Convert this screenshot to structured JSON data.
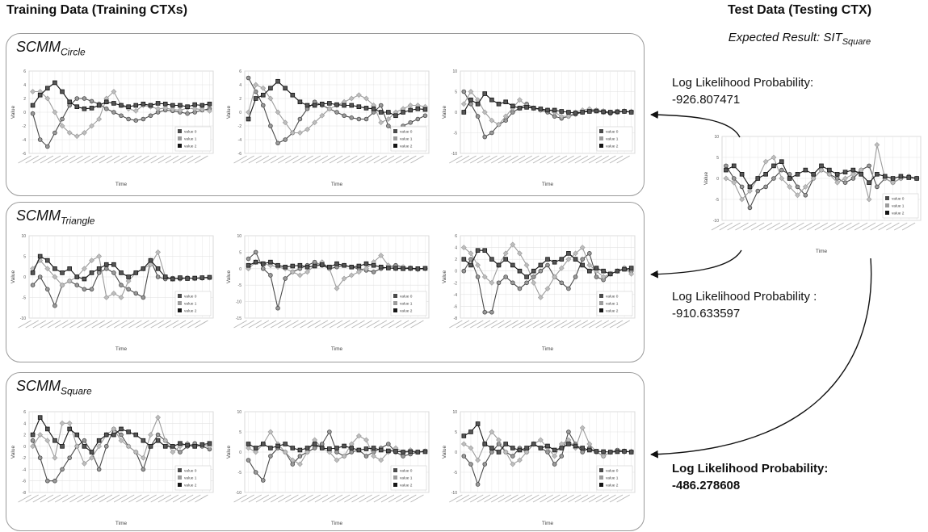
{
  "header": {
    "training_title": "Training Data (Training CTXs)",
    "test_title": "Test Data (Testing CTX)",
    "expected_prefix": "Expected Result: SIT",
    "expected_sub": "Square"
  },
  "chart_labels": {
    "ylabel": "Value",
    "xlabel": "Time",
    "legend": [
      "value 0",
      "value 1",
      "value 2"
    ]
  },
  "groups": [
    {
      "name": "SCMM",
      "sub": "Circle",
      "log_label": "Log Likelihood Probability:",
      "log_value": "-926.807471",
      "emphasized": false
    },
    {
      "name": "SCMM",
      "sub": "Triangle",
      "log_label": "Log Likelihood Probability :",
      "log_value": "-910.633597",
      "emphasized": false
    },
    {
      "name": "SCMM",
      "sub": "Square",
      "log_label": "Log Likelihood Probability:",
      "log_value": "-486.278608",
      "emphasized": true
    }
  ],
  "chart_data": [
    {
      "id": "circle-1",
      "type": "line",
      "ylim": [
        -6,
        6
      ],
      "yticks": [
        -6,
        -4,
        -2,
        0,
        2,
        4,
        6
      ],
      "series": [
        {
          "values": [
            -0.2,
            -4,
            -5,
            -3,
            -1,
            1,
            2,
            2,
            1.6,
            1.2,
            0.5,
            0,
            -0.5,
            -1,
            -1.2,
            -1,
            -0.5,
            0,
            0.3,
            0.2,
            0,
            -0.2,
            0,
            0.3,
            0.5
          ]
        },
        {
          "values": [
            3,
            3,
            2,
            0,
            -2,
            -3,
            -3.5,
            -3,
            -2,
            -1,
            2,
            3,
            1,
            0.5,
            0.2,
            1,
            0.8,
            0.5,
            0.6,
            0.4,
            0.3,
            0.6,
            0.5,
            0.4,
            0.2
          ]
        },
        {
          "values": [
            1,
            2.5,
            3.5,
            4.3,
            3,
            1.5,
            0.8,
            0.5,
            0.6,
            1,
            1.5,
            1.3,
            1,
            0.8,
            1,
            1.2,
            1,
            1.3,
            1.2,
            1,
            1,
            0.8,
            1.1,
            1,
            1.2
          ]
        }
      ]
    },
    {
      "id": "circle-2",
      "type": "line",
      "ylim": [
        -6,
        6
      ],
      "yticks": [
        -6,
        -4,
        -2,
        0,
        2,
        4,
        6
      ],
      "series": [
        {
          "values": [
            5,
            3,
            1,
            -2,
            -4.5,
            -4,
            -3,
            -1,
            0.5,
            1.5,
            1,
            0.5,
            0,
            -0.5,
            -0.8,
            -1,
            -1,
            0,
            1,
            -2,
            -3,
            -2,
            -1.5,
            -1,
            -0.5
          ]
        },
        {
          "values": [
            0,
            4,
            3.5,
            2,
            0,
            -1.5,
            -3,
            -3,
            -2.5,
            -1.5,
            -0.5,
            0.5,
            1,
            1.5,
            2,
            2.5,
            2,
            1,
            -1.5,
            -1,
            0,
            0.5,
            1,
            1,
            0.8
          ]
        },
        {
          "values": [
            -1,
            2,
            2.5,
            3.5,
            4.5,
            3.5,
            2.5,
            1.5,
            1,
            1,
            1.2,
            1.3,
            1.1,
            1,
            1,
            0.8,
            0.6,
            0.5,
            0,
            0,
            -0.5,
            0,
            0.3,
            0.5,
            0.4
          ]
        }
      ]
    },
    {
      "id": "circle-3",
      "type": "line",
      "ylim": [
        -10,
        10
      ],
      "yticks": [
        -10,
        -5,
        0,
        5,
        10
      ],
      "series": [
        {
          "values": [
            5,
            2,
            -1,
            -6,
            -5,
            -3,
            -2,
            0,
            1,
            2,
            1,
            0.5,
            0,
            -1,
            -1.5,
            -1,
            -0.5,
            0,
            0.5,
            0.3,
            0,
            -0.3,
            0,
            0.2,
            0
          ]
        },
        {
          "values": [
            2,
            5,
            3,
            0,
            -2,
            -3,
            -1,
            1,
            3,
            1.5,
            1,
            0.5,
            0.5,
            0,
            -1,
            -1,
            0,
            0.5,
            0.8,
            0.5,
            0.3,
            0,
            0.2,
            0.3,
            0.2
          ]
        },
        {
          "values": [
            0,
            3,
            2,
            4.5,
            3,
            2,
            2.5,
            1.5,
            1,
            1.2,
            1,
            0.8,
            0.5,
            0.5,
            0.2,
            0,
            -0.2,
            0,
            0.2,
            0.3,
            0.1,
            0,
            0.1,
            0.2,
            0
          ]
        }
      ]
    },
    {
      "id": "triangle-1",
      "type": "line",
      "ylim": [
        -10,
        10
      ],
      "yticks": [
        -10,
        -5,
        0,
        5,
        10
      ],
      "series": [
        {
          "values": [
            -2,
            0,
            -3,
            -7,
            -2,
            -1,
            -2,
            -3,
            -3,
            1,
            2,
            1,
            -2,
            -3,
            -4,
            -5,
            4,
            0,
            -0.5,
            -0.3,
            -0.5,
            -0.2,
            -0.4,
            -0.3,
            -0.2
          ]
        },
        {
          "values": [
            2,
            4,
            2,
            0,
            -2,
            -1,
            0,
            2,
            4,
            5,
            -5,
            -4,
            -5,
            -1,
            1,
            2,
            3,
            6,
            0,
            -0.5,
            -0.3,
            -0.2,
            -0.4,
            -0.3,
            -0.2
          ]
        },
        {
          "values": [
            1,
            5,
            4,
            2,
            1,
            2,
            0,
            -0.5,
            1,
            2,
            3,
            3,
            1,
            0,
            1,
            2,
            4,
            2,
            0,
            -0.5,
            -0.2,
            -0.4,
            -0.3,
            -0.2,
            -0.1
          ]
        }
      ]
    },
    {
      "id": "triangle-2",
      "type": "line",
      "ylim": [
        -15,
        10
      ],
      "yticks": [
        -15,
        -10,
        -5,
        0,
        5,
        10
      ],
      "series": [
        {
          "values": [
            3,
            5,
            0,
            -2,
            -12,
            -3,
            -1,
            0,
            1,
            2,
            1,
            0,
            0.5,
            1,
            0.5,
            0,
            -0.5,
            -1,
            0,
            0.5,
            1,
            0.5,
            0.2,
            0,
            0.1
          ]
        },
        {
          "values": [
            0,
            2,
            1.5,
            1,
            0.5,
            0,
            -1,
            -2,
            -1,
            1,
            2,
            0,
            -6,
            -3,
            -2,
            -1,
            0,
            2,
            4,
            1,
            0,
            0.5,
            0,
            -0.3,
            0
          ]
        },
        {
          "values": [
            1,
            2,
            1.5,
            2,
            1,
            0.5,
            0.8,
            1,
            0.5,
            0.8,
            1.2,
            0.5,
            1.5,
            1,
            0.5,
            0.8,
            1.5,
            1,
            0.5,
            0.2,
            0.1,
            0,
            0.1,
            0,
            0.1
          ]
        }
      ]
    },
    {
      "id": "triangle-3",
      "type": "line",
      "ylim": [
        -8,
        6
      ],
      "yticks": [
        -8,
        -6,
        -4,
        -2,
        0,
        2,
        4,
        6
      ],
      "series": [
        {
          "values": [
            0,
            2,
            -1,
            -7,
            -7,
            -2,
            -1,
            -2,
            -3,
            -2,
            -1,
            0,
            1,
            -1,
            -2,
            -3,
            -1,
            2,
            3,
            -1,
            -1.5,
            -0.5,
            0,
            0.5,
            0
          ]
        },
        {
          "values": [
            4,
            3,
            1,
            -1,
            -2,
            1,
            3,
            4.5,
            3,
            1,
            -2,
            -4.5,
            -3,
            -1,
            0.5,
            2,
            3,
            4,
            1,
            0,
            -1,
            -0.5,
            0,
            0.5,
            -0.5
          ]
        },
        {
          "values": [
            2,
            1,
            3.5,
            3.5,
            2,
            1,
            2,
            1,
            0,
            -1,
            0,
            1,
            2,
            1.5,
            2,
            3,
            2,
            1,
            0,
            0.5,
            0,
            -0.5,
            0,
            0.3,
            0.5
          ]
        }
      ]
    },
    {
      "id": "square-1",
      "type": "line",
      "ylim": [
        -8,
        6
      ],
      "yticks": [
        -8,
        -6,
        -4,
        -2,
        0,
        2,
        4,
        6
      ],
      "series": [
        {
          "values": [
            1,
            -2,
            -6,
            -6,
            -4,
            -2,
            0,
            1,
            -1,
            -4,
            0,
            3,
            2,
            0,
            -1,
            -4,
            0,
            2,
            1,
            0,
            -1,
            0,
            0.5,
            0,
            -0.5
          ]
        },
        {
          "values": [
            0,
            2,
            1,
            -2,
            4,
            4,
            0,
            -3,
            -2,
            0,
            2,
            3,
            1,
            0,
            -1,
            -2,
            2,
            5,
            1,
            -1,
            0,
            0.5,
            0,
            0.2,
            0
          ]
        },
        {
          "values": [
            2,
            5,
            3,
            1,
            0,
            3,
            2,
            0,
            -1,
            1,
            2,
            2,
            3,
            2.5,
            2,
            1,
            0,
            1,
            0,
            0,
            0.5,
            0.2,
            0,
            0.3,
            0.5
          ]
        }
      ]
    },
    {
      "id": "square-2",
      "type": "line",
      "ylim": [
        -10,
        10
      ],
      "yticks": [
        -10,
        -5,
        0,
        5,
        10
      ],
      "series": [
        {
          "values": [
            -2,
            -5,
            -7,
            -1,
            1,
            0,
            -3,
            -1,
            0,
            1,
            2,
            5,
            0,
            -1,
            0,
            0.5,
            -1,
            0,
            1,
            2,
            0,
            -1,
            -0.5,
            0,
            0.3
          ]
        },
        {
          "values": [
            1,
            0,
            2,
            5,
            2,
            0,
            -2,
            -3,
            0,
            3,
            1,
            0,
            -2,
            -1,
            2,
            4,
            3,
            -1,
            -2,
            0,
            1,
            0,
            0.5,
            0,
            0.2
          ]
        },
        {
          "values": [
            2,
            1,
            2,
            1,
            1.5,
            2,
            1,
            0.5,
            1,
            2,
            1,
            0.8,
            1,
            1.5,
            1,
            0.5,
            0.8,
            1,
            0.5,
            0.3,
            0.2,
            0,
            0.1,
            0,
            0.1
          ]
        }
      ]
    },
    {
      "id": "square-3",
      "type": "line",
      "ylim": [
        -10,
        10
      ],
      "yticks": [
        -10,
        -5,
        0,
        5,
        10
      ],
      "series": [
        {
          "values": [
            -1,
            -3,
            -8,
            -3,
            0,
            2,
            0,
            -1,
            1,
            0,
            2,
            1,
            0,
            -3,
            -1,
            5,
            2,
            0,
            1,
            0,
            -1,
            0,
            0.5,
            0.3,
            0
          ]
        },
        {
          "values": [
            2,
            1,
            -2,
            2,
            5,
            3,
            0,
            -3,
            -2,
            0,
            2,
            3,
            1,
            -1,
            2,
            3,
            1,
            6,
            2,
            0,
            -1,
            0,
            0.3,
            0,
            0.2
          ]
        },
        {
          "values": [
            4,
            5,
            7,
            2,
            1,
            0,
            2,
            1,
            0.5,
            1,
            2,
            1,
            1.5,
            0.5,
            1,
            2,
            1.5,
            1,
            0.5,
            0.2,
            0.1,
            0,
            0.1,
            0.2,
            0
          ]
        }
      ]
    },
    {
      "id": "test",
      "type": "line",
      "ylim": [
        -10,
        10
      ],
      "yticks": [
        -10,
        -5,
        0,
        5,
        10
      ],
      "series": [
        {
          "values": [
            3,
            0,
            -2,
            -7,
            -3,
            -2,
            0,
            2,
            1,
            -2,
            -4,
            0,
            2,
            1,
            0,
            -1,
            0,
            2,
            3,
            -2,
            0,
            -1,
            0,
            0.5,
            0
          ]
        },
        {
          "values": [
            0,
            -1,
            -5,
            -3,
            0,
            4,
            5,
            0,
            -2,
            -4,
            -2,
            0,
            2,
            1,
            -1,
            0,
            1,
            2,
            -5,
            8,
            0,
            -1,
            0,
            0.3,
            0
          ]
        },
        {
          "values": [
            2,
            3,
            1,
            -2,
            0,
            1,
            3,
            4,
            0,
            1,
            2,
            1,
            3,
            2,
            1,
            1.5,
            2,
            1,
            -1,
            1,
            0.5,
            0,
            0.5,
            0.2,
            0
          ]
        }
      ]
    }
  ]
}
